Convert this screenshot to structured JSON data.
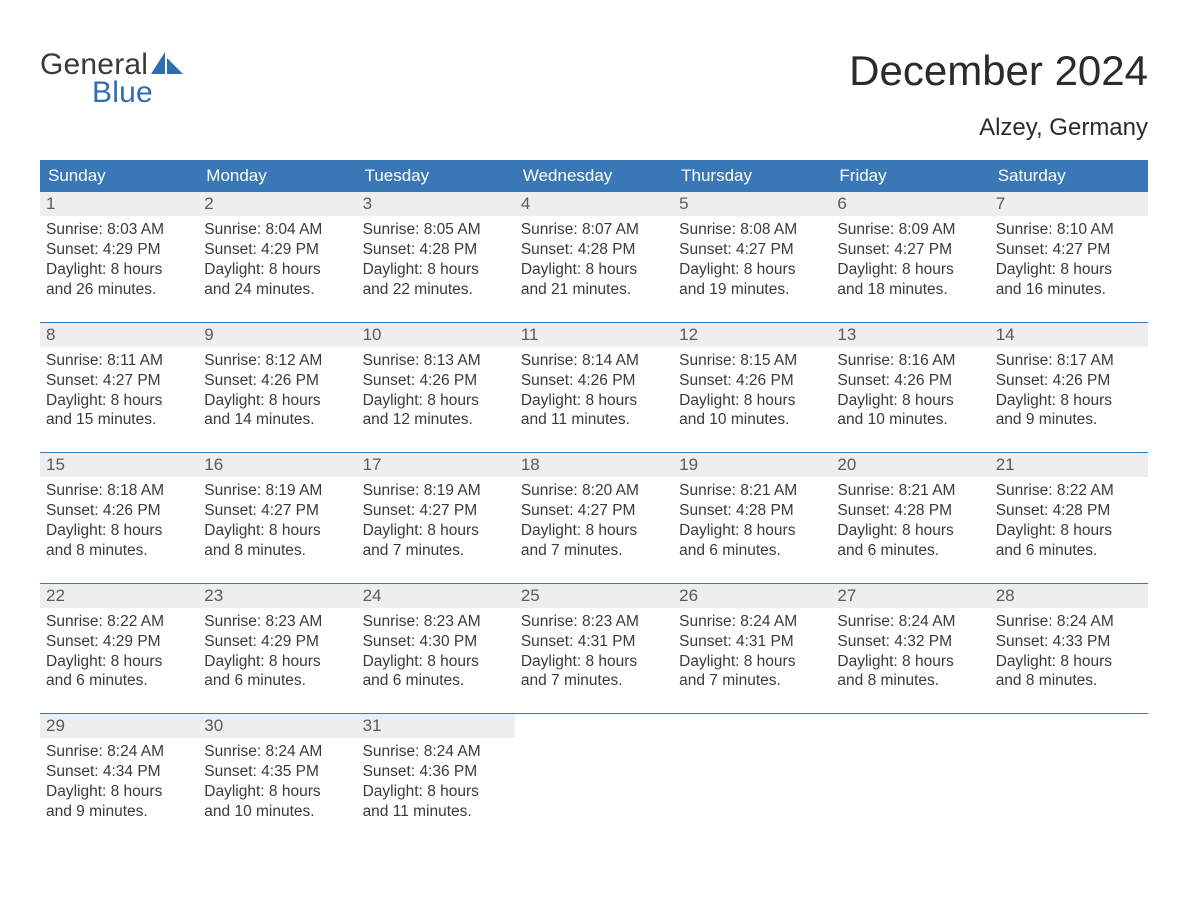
{
  "brand": {
    "word1": "General",
    "word2": "Blue",
    "brand_color": "#2f6db3"
  },
  "title": "December 2024",
  "location": "Alzey, Germany",
  "colors": {
    "header_bg": "#3a77b7",
    "header_text": "#ffffff",
    "daynum_bg": "#eeeeee",
    "daynum_text": "#5b5b5b",
    "body_text": "#3a3a3a",
    "week_sep": "#3a77b7",
    "page_bg": "#ffffff"
  },
  "day_headers": [
    "Sunday",
    "Monday",
    "Tuesday",
    "Wednesday",
    "Thursday",
    "Friday",
    "Saturday"
  ],
  "weeks": [
    [
      {
        "n": "1",
        "sr": "8:03 AM",
        "ss": "4:29 PM",
        "dl": "8 hours and 26 minutes."
      },
      {
        "n": "2",
        "sr": "8:04 AM",
        "ss": "4:29 PM",
        "dl": "8 hours and 24 minutes."
      },
      {
        "n": "3",
        "sr": "8:05 AM",
        "ss": "4:28 PM",
        "dl": "8 hours and 22 minutes."
      },
      {
        "n": "4",
        "sr": "8:07 AM",
        "ss": "4:28 PM",
        "dl": "8 hours and 21 minutes."
      },
      {
        "n": "5",
        "sr": "8:08 AM",
        "ss": "4:27 PM",
        "dl": "8 hours and 19 minutes."
      },
      {
        "n": "6",
        "sr": "8:09 AM",
        "ss": "4:27 PM",
        "dl": "8 hours and 18 minutes."
      },
      {
        "n": "7",
        "sr": "8:10 AM",
        "ss": "4:27 PM",
        "dl": "8 hours and 16 minutes."
      }
    ],
    [
      {
        "n": "8",
        "sr": "8:11 AM",
        "ss": "4:27 PM",
        "dl": "8 hours and 15 minutes."
      },
      {
        "n": "9",
        "sr": "8:12 AM",
        "ss": "4:26 PM",
        "dl": "8 hours and 14 minutes."
      },
      {
        "n": "10",
        "sr": "8:13 AM",
        "ss": "4:26 PM",
        "dl": "8 hours and 12 minutes."
      },
      {
        "n": "11",
        "sr": "8:14 AM",
        "ss": "4:26 PM",
        "dl": "8 hours and 11 minutes."
      },
      {
        "n": "12",
        "sr": "8:15 AM",
        "ss": "4:26 PM",
        "dl": "8 hours and 10 minutes."
      },
      {
        "n": "13",
        "sr": "8:16 AM",
        "ss": "4:26 PM",
        "dl": "8 hours and 10 minutes."
      },
      {
        "n": "14",
        "sr": "8:17 AM",
        "ss": "4:26 PM",
        "dl": "8 hours and 9 minutes."
      }
    ],
    [
      {
        "n": "15",
        "sr": "8:18 AM",
        "ss": "4:26 PM",
        "dl": "8 hours and 8 minutes."
      },
      {
        "n": "16",
        "sr": "8:19 AM",
        "ss": "4:27 PM",
        "dl": "8 hours and 8 minutes."
      },
      {
        "n": "17",
        "sr": "8:19 AM",
        "ss": "4:27 PM",
        "dl": "8 hours and 7 minutes."
      },
      {
        "n": "18",
        "sr": "8:20 AM",
        "ss": "4:27 PM",
        "dl": "8 hours and 7 minutes."
      },
      {
        "n": "19",
        "sr": "8:21 AM",
        "ss": "4:28 PM",
        "dl": "8 hours and 6 minutes."
      },
      {
        "n": "20",
        "sr": "8:21 AM",
        "ss": "4:28 PM",
        "dl": "8 hours and 6 minutes."
      },
      {
        "n": "21",
        "sr": "8:22 AM",
        "ss": "4:28 PM",
        "dl": "8 hours and 6 minutes."
      }
    ],
    [
      {
        "n": "22",
        "sr": "8:22 AM",
        "ss": "4:29 PM",
        "dl": "8 hours and 6 minutes."
      },
      {
        "n": "23",
        "sr": "8:23 AM",
        "ss": "4:29 PM",
        "dl": "8 hours and 6 minutes."
      },
      {
        "n": "24",
        "sr": "8:23 AM",
        "ss": "4:30 PM",
        "dl": "8 hours and 6 minutes."
      },
      {
        "n": "25",
        "sr": "8:23 AM",
        "ss": "4:31 PM",
        "dl": "8 hours and 7 minutes."
      },
      {
        "n": "26",
        "sr": "8:24 AM",
        "ss": "4:31 PM",
        "dl": "8 hours and 7 minutes."
      },
      {
        "n": "27",
        "sr": "8:24 AM",
        "ss": "4:32 PM",
        "dl": "8 hours and 8 minutes."
      },
      {
        "n": "28",
        "sr": "8:24 AM",
        "ss": "4:33 PM",
        "dl": "8 hours and 8 minutes."
      }
    ],
    [
      {
        "n": "29",
        "sr": "8:24 AM",
        "ss": "4:34 PM",
        "dl": "8 hours and 9 minutes."
      },
      {
        "n": "30",
        "sr": "8:24 AM",
        "ss": "4:35 PM",
        "dl": "8 hours and 10 minutes."
      },
      {
        "n": "31",
        "sr": "8:24 AM",
        "ss": "4:36 PM",
        "dl": "8 hours and 11 minutes."
      },
      null,
      null,
      null,
      null
    ]
  ],
  "labels": {
    "sunrise": "Sunrise: ",
    "sunset": "Sunset: ",
    "daylight": "Daylight: "
  }
}
